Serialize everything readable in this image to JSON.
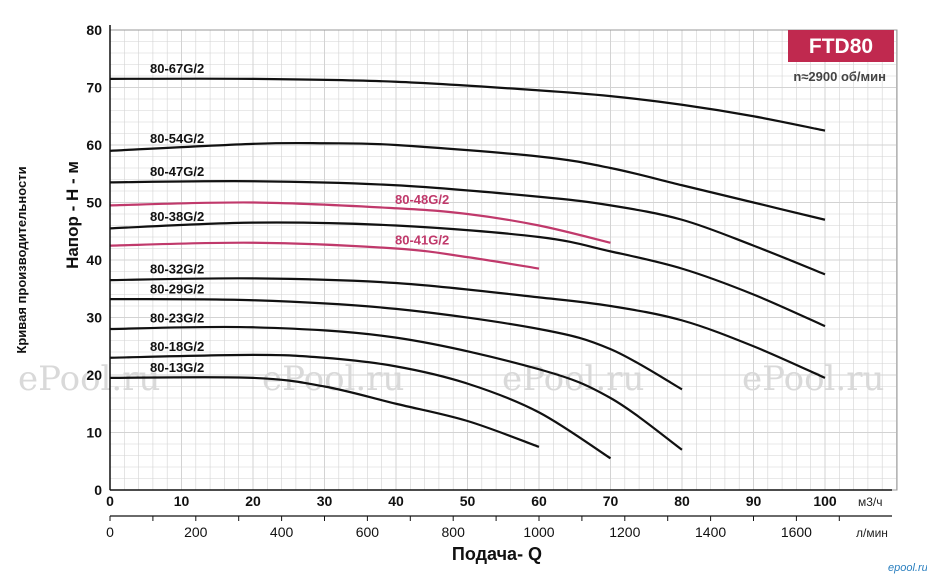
{
  "chart_data": {
    "type": "line",
    "title": "FTD80",
    "speed_note": "n≈2900 об/мин",
    "side_label": "Кривая производительности",
    "ylabel": "Напор - Н - м",
    "xlabel": "Подача- Q",
    "x_unit_primary": "м3/ч",
    "x_unit_secondary": "л/мин",
    "xlim": [
      0,
      100
    ],
    "ylim": [
      0,
      80
    ],
    "x_ticks": [
      0,
      10,
      20,
      30,
      40,
      50,
      60,
      70,
      80,
      90,
      100
    ],
    "x_ticks_secondary": [
      0,
      200,
      400,
      600,
      800,
      1000,
      1200,
      1400,
      1600
    ],
    "y_ticks": [
      0,
      10,
      20,
      30,
      40,
      50,
      60,
      70,
      80
    ],
    "grid": true,
    "series": [
      {
        "name": "80-67G/2",
        "color": "#111111",
        "x": [
          0,
          20,
          40,
          60,
          70,
          80,
          90,
          100
        ],
        "y": [
          71.5,
          71.5,
          71,
          69.5,
          68.5,
          67,
          65,
          62.5
        ]
      },
      {
        "name": "80-54G/2",
        "color": "#111111",
        "x": [
          0,
          20,
          30,
          40,
          60,
          70,
          80,
          90,
          100
        ],
        "y": [
          59,
          60.2,
          60.3,
          60,
          58,
          56,
          53,
          50,
          47
        ]
      },
      {
        "name": "80-47G/2",
        "color": "#111111",
        "x": [
          0,
          20,
          40,
          60,
          70,
          80,
          90,
          100
        ],
        "y": [
          53.5,
          53.7,
          53,
          51,
          49.5,
          47,
          42.5,
          37.5
        ]
      },
      {
        "name": "80-48G/2",
        "color": "#c0396b",
        "x": [
          0,
          20,
          40,
          50,
          60,
          70
        ],
        "y": [
          49.5,
          50,
          49,
          48,
          46,
          43
        ]
      },
      {
        "name": "80-38G/2",
        "color": "#111111",
        "x": [
          0,
          20,
          40,
          60,
          70,
          80,
          90,
          100
        ],
        "y": [
          45.5,
          46.5,
          46,
          44,
          41.5,
          38.5,
          34,
          28.5
        ]
      },
      {
        "name": "80-41G/2",
        "color": "#c0396b",
        "x": [
          0,
          20,
          40,
          50,
          60
        ],
        "y": [
          42.5,
          43,
          42,
          40.5,
          38.5
        ]
      },
      {
        "name": "80-32G/2",
        "color": "#111111",
        "x": [
          0,
          20,
          40,
          60,
          70,
          80,
          90,
          100
        ],
        "y": [
          36.5,
          36.8,
          36,
          33.5,
          32,
          29.5,
          25,
          19.5
        ]
      },
      {
        "name": "80-29G/2",
        "color": "#111111",
        "x": [
          0,
          20,
          40,
          60,
          70,
          80
        ],
        "y": [
          33.2,
          33,
          31.5,
          28,
          24.5,
          17.5
        ]
      },
      {
        "name": "80-23G/2",
        "color": "#111111",
        "x": [
          0,
          20,
          40,
          60,
          70,
          80
        ],
        "y": [
          28,
          28.3,
          26.5,
          21,
          16,
          7
        ]
      },
      {
        "name": "80-18G/2",
        "color": "#111111",
        "x": [
          0,
          20,
          30,
          40,
          50,
          60,
          70
        ],
        "y": [
          23,
          23.5,
          23,
          21.5,
          18.5,
          13.5,
          5.5
        ]
      },
      {
        "name": "80-13G/2",
        "color": "#111111",
        "x": [
          0,
          20,
          30,
          40,
          50,
          60
        ],
        "y": [
          19.5,
          19.5,
          18,
          15,
          12,
          7.5
        ]
      }
    ],
    "label_positions": [
      "left"
    ],
    "watermark": "ePool.ru",
    "brand_mark": "epool.ru",
    "colors": {
      "title_badge": "#c0294f",
      "accent_series": "#c0396b",
      "grid": "#d0d0d0"
    }
  }
}
